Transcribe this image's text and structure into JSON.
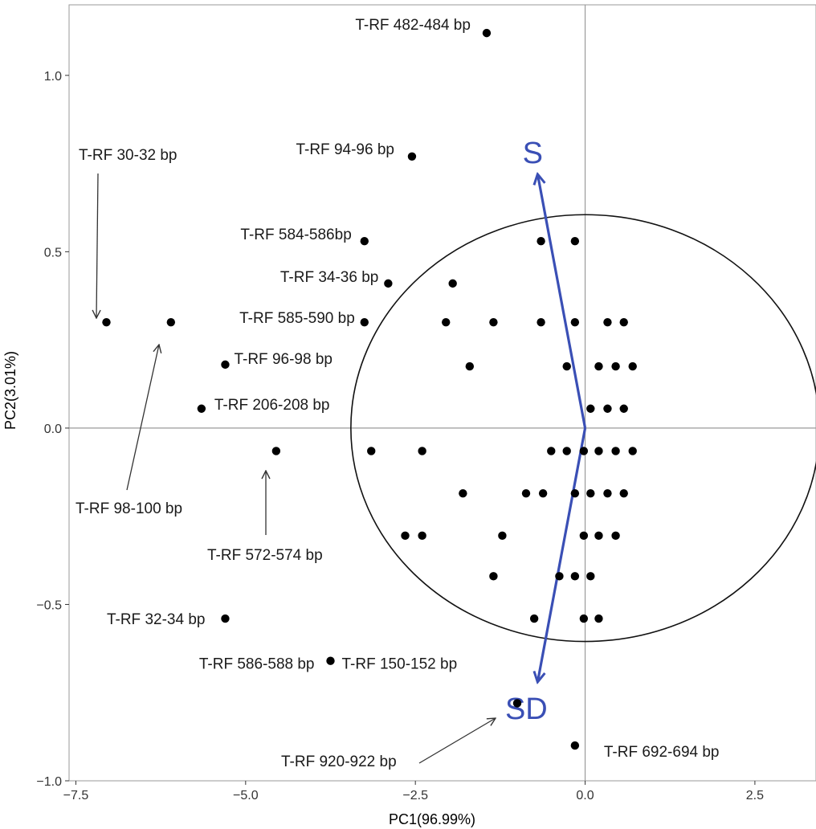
{
  "chart_data": {
    "type": "scatter",
    "title": "",
    "xlabel": "PC1(96.99%)",
    "ylabel": "PC2(3.01%)",
    "xlim": [
      -7.6,
      3.4
    ],
    "ylim": [
      -1.0,
      1.2
    ],
    "xticks": [
      -7.5,
      -5.0,
      -2.5,
      0.0,
      2.5
    ],
    "xtick_labels": [
      "−7.5",
      "−5.0",
      "−2.5",
      "0.0",
      "2.5"
    ],
    "yticks": [
      -1.0,
      -0.5,
      0.0,
      0.5,
      1.0
    ],
    "ytick_labels": [
      "−1.0",
      "−0.5",
      "0.0",
      "0.5",
      "1.0"
    ],
    "grid": false,
    "reference_lines": {
      "x": 0.0,
      "y": 0.0
    },
    "circle": {
      "center": [
        0.0,
        0.0
      ],
      "radius_x": 3.45,
      "radius_y": 0.605
    },
    "vectors": [
      {
        "label": "S",
        "x": -0.7,
        "y": 0.72,
        "color": "#3a4fb5"
      },
      {
        "label": "SD",
        "x": -0.7,
        "y": -0.72,
        "color": "#3a4fb5"
      }
    ],
    "labeled_points": [
      {
        "label": "T-RF 482-484 bp",
        "x": -1.45,
        "y": 1.12
      },
      {
        "label": "T-RF 94-96 bp",
        "x": -2.55,
        "y": 0.77
      },
      {
        "label": "T-RF 30-32 bp",
        "x": -7.05,
        "y": 0.3
      },
      {
        "label": "T-RF 98-100 bp",
        "x": -6.1,
        "y": 0.3
      },
      {
        "label": "T-RF 584-586bp",
        "x": -3.25,
        "y": 0.53
      },
      {
        "label": "T-RF 34-36 bp",
        "x": -2.9,
        "y": 0.41
      },
      {
        "label": "T-RF 585-590 bp",
        "x": -3.25,
        "y": 0.3
      },
      {
        "label": "T-RF 96-98 bp",
        "x": -5.3,
        "y": 0.18
      },
      {
        "label": "T-RF 206-208 bp",
        "x": -5.65,
        "y": 0.055
      },
      {
        "label": "T-RF 572-574 bp",
        "x": -4.55,
        "y": -0.065
      },
      {
        "label": "T-RF 32-34 bp",
        "x": -5.3,
        "y": -0.54
      },
      {
        "label": "T-RF 586-588 bp",
        "x": -3.75,
        "y": -0.66
      },
      {
        "label": "T-RF 150-152 bp",
        "x": -3.75,
        "y": -0.66
      },
      {
        "label": "T-RF 920-922 bp",
        "x": -1.0,
        "y": -0.78
      },
      {
        "label": "T-RF 692-694 bp",
        "x": -0.15,
        "y": -0.9
      }
    ],
    "unlabeled_points": [
      {
        "x": -0.65,
        "y": 0.53
      },
      {
        "x": -0.15,
        "y": 0.53
      },
      {
        "x": -1.95,
        "y": 0.41
      },
      {
        "x": -2.05,
        "y": 0.3
      },
      {
        "x": -1.35,
        "y": 0.3
      },
      {
        "x": -0.65,
        "y": 0.3
      },
      {
        "x": -0.15,
        "y": 0.3
      },
      {
        "x": 0.33,
        "y": 0.3
      },
      {
        "x": 0.57,
        "y": 0.3
      },
      {
        "x": -1.7,
        "y": 0.175
      },
      {
        "x": -0.27,
        "y": 0.175
      },
      {
        "x": 0.2,
        "y": 0.175
      },
      {
        "x": 0.45,
        "y": 0.175
      },
      {
        "x": 0.7,
        "y": 0.175
      },
      {
        "x": 0.08,
        "y": 0.055
      },
      {
        "x": 0.33,
        "y": 0.055
      },
      {
        "x": 0.57,
        "y": 0.055
      },
      {
        "x": -3.15,
        "y": -0.065
      },
      {
        "x": -2.4,
        "y": -0.065
      },
      {
        "x": -0.5,
        "y": -0.065
      },
      {
        "x": -0.27,
        "y": -0.065
      },
      {
        "x": -0.02,
        "y": -0.065
      },
      {
        "x": 0.2,
        "y": -0.065
      },
      {
        "x": 0.45,
        "y": -0.065
      },
      {
        "x": 0.7,
        "y": -0.065
      },
      {
        "x": -1.8,
        "y": -0.185
      },
      {
        "x": -0.87,
        "y": -0.185
      },
      {
        "x": -0.62,
        "y": -0.185
      },
      {
        "x": -0.15,
        "y": -0.185
      },
      {
        "x": 0.08,
        "y": -0.185
      },
      {
        "x": 0.33,
        "y": -0.185
      },
      {
        "x": 0.57,
        "y": -0.185
      },
      {
        "x": -2.65,
        "y": -0.305
      },
      {
        "x": -2.4,
        "y": -0.305
      },
      {
        "x": -1.22,
        "y": -0.305
      },
      {
        "x": -0.02,
        "y": -0.305
      },
      {
        "x": 0.2,
        "y": -0.305
      },
      {
        "x": 0.45,
        "y": -0.305
      },
      {
        "x": -1.35,
        "y": -0.42
      },
      {
        "x": -0.38,
        "y": -0.42
      },
      {
        "x": -0.15,
        "y": -0.42
      },
      {
        "x": 0.08,
        "y": -0.42
      },
      {
        "x": -0.75,
        "y": -0.54
      },
      {
        "x": -0.02,
        "y": -0.54
      },
      {
        "x": 0.2,
        "y": -0.54
      }
    ]
  }
}
